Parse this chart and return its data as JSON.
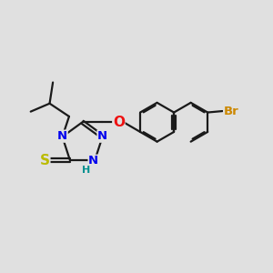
{
  "bg_color": "#e0e0e0",
  "bond_color": "#1a1a1a",
  "N_color": "#0000ee",
  "S_color": "#bbbb00",
  "O_color": "#ee1111",
  "Br_color": "#cc8800",
  "H_color": "#009090",
  "line_width": 1.6,
  "font_size": 9.5,
  "xlim": [
    0,
    10
  ],
  "ylim": [
    0,
    10
  ]
}
